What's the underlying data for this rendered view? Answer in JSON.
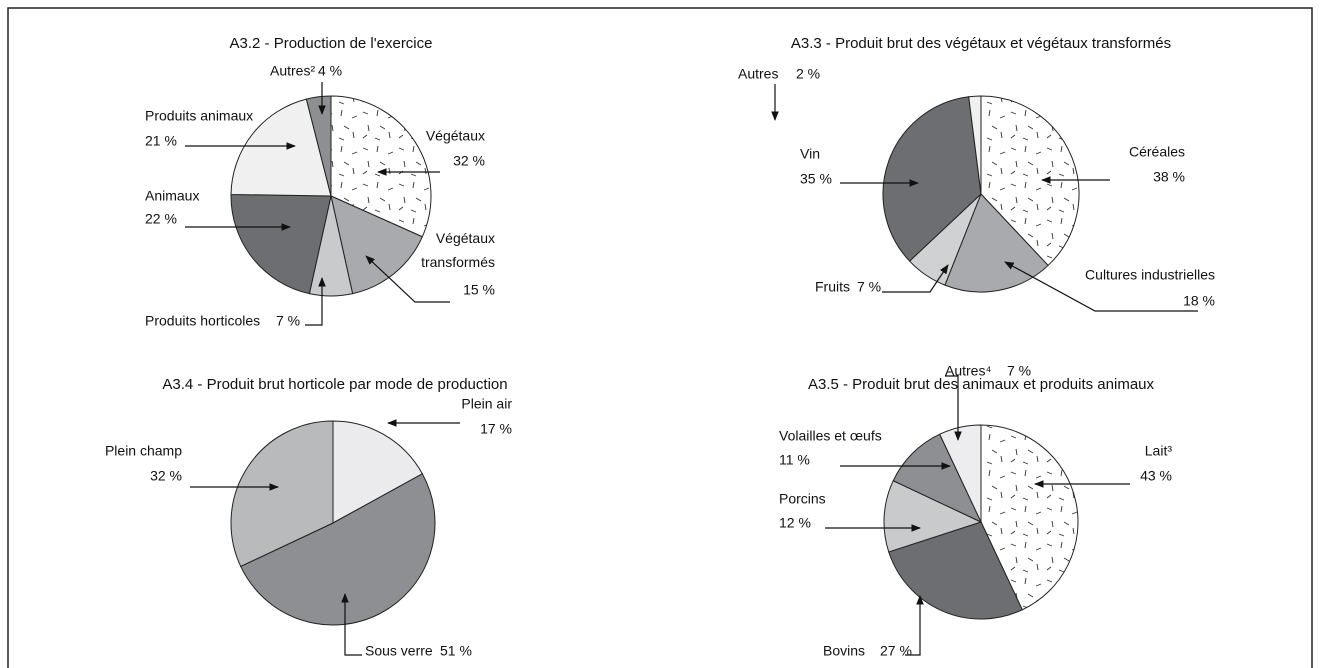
{
  "chart_data": [
    {
      "type": "pie",
      "title": "A3.2 - Production de l'exercice",
      "categories": [
        "Végétaux",
        "Végétaux transformés",
        "Produits horticoles",
        "Animaux",
        "Produits animaux",
        "Autres²"
      ],
      "values": [
        32,
        15,
        7,
        22,
        21,
        4
      ],
      "value_labels": [
        "32 %",
        "15 %",
        "7 %",
        "22 %",
        "21 %",
        "4 %"
      ],
      "colors": [
        "#ffffff",
        "#a9aaad",
        "#c9cacc",
        "#6d6e71",
        "#f0f0f1",
        "#8e8f92"
      ],
      "patterns": [
        "dashes",
        null,
        null,
        null,
        null,
        null
      ]
    },
    {
      "type": "pie",
      "title": "A3.3 - Produit brut des végétaux et végétaux transformés",
      "categories": [
        "Céréales",
        "Cultures industrielles",
        "Fruits",
        "Vin",
        "Autres"
      ],
      "values": [
        38,
        18,
        7,
        35,
        2
      ],
      "value_labels": [
        "38 %",
        "18 %",
        "7 %",
        "35 %",
        "2 %"
      ],
      "colors": [
        "#ffffff",
        "#a9aaad",
        "#d0d1d3",
        "#6d6e71",
        "#f0f0f1"
      ],
      "patterns": [
        "dashes",
        null,
        null,
        null,
        null
      ]
    },
    {
      "type": "pie",
      "title": "A3.4 - Produit brut horticole par mode de production",
      "categories": [
        "Plein air",
        "Sous verre",
        "Plein champ"
      ],
      "values": [
        17,
        51,
        32
      ],
      "value_labels": [
        "17 %",
        "51 %",
        "32 %"
      ],
      "colors": [
        "#ebebed",
        "#8e8f92",
        "#b9babc"
      ],
      "patterns": [
        null,
        null,
        null
      ]
    },
    {
      "type": "pie",
      "title": "A3.5 - Produit brut des animaux et produits animaux",
      "categories": [
        "Lait³",
        "Bovins",
        "Porcins",
        "Volailles et œufs",
        "Autres⁴"
      ],
      "values": [
        43,
        27,
        12,
        11,
        7
      ],
      "value_labels": [
        "43 %",
        "27 %",
        "12 %",
        "11 %",
        "7 %"
      ],
      "colors": [
        "#ffffff",
        "#6d6e71",
        "#c9cacc",
        "#8e8f92",
        "#ededef"
      ],
      "patterns": [
        "dashes",
        null,
        null,
        null,
        null
      ]
    }
  ]
}
